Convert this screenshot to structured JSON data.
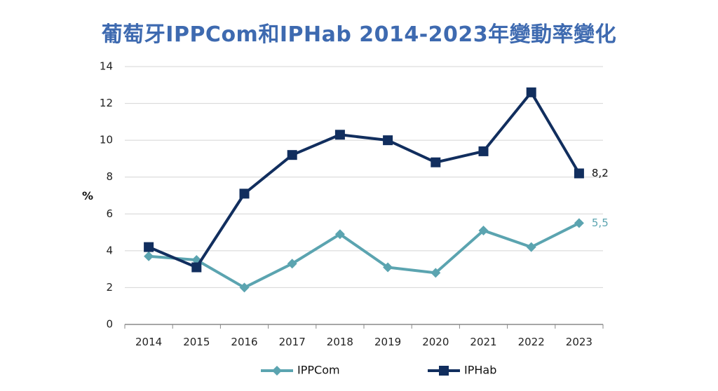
{
  "chart_data": {
    "type": "line",
    "title": "葡萄牙IPPCom和IPHab 2014-2023年變動率變化",
    "xlabel": "",
    "ylabel": "%",
    "categories": [
      "2014",
      "2015",
      "2016",
      "2017",
      "2018",
      "2019",
      "2020",
      "2021",
      "2022",
      "2023"
    ],
    "ylim": [
      0,
      14
    ],
    "yticks": [
      0,
      2,
      4,
      6,
      8,
      10,
      12,
      14
    ],
    "grid": true,
    "legend_position": "bottom",
    "series": [
      {
        "name": "IPPCom",
        "color": "#5ba4b0",
        "marker": "diamond",
        "values": [
          3.7,
          3.5,
          2.0,
          3.3,
          4.9,
          3.1,
          2.8,
          5.1,
          4.2,
          5.5
        ],
        "end_label": "5,5"
      },
      {
        "name": "IPHab",
        "color": "#112e5e",
        "marker": "square",
        "values": [
          4.2,
          3.1,
          7.1,
          9.2,
          10.3,
          10.0,
          8.8,
          9.4,
          12.6,
          8.2
        ],
        "end_label": "8,2"
      }
    ]
  }
}
